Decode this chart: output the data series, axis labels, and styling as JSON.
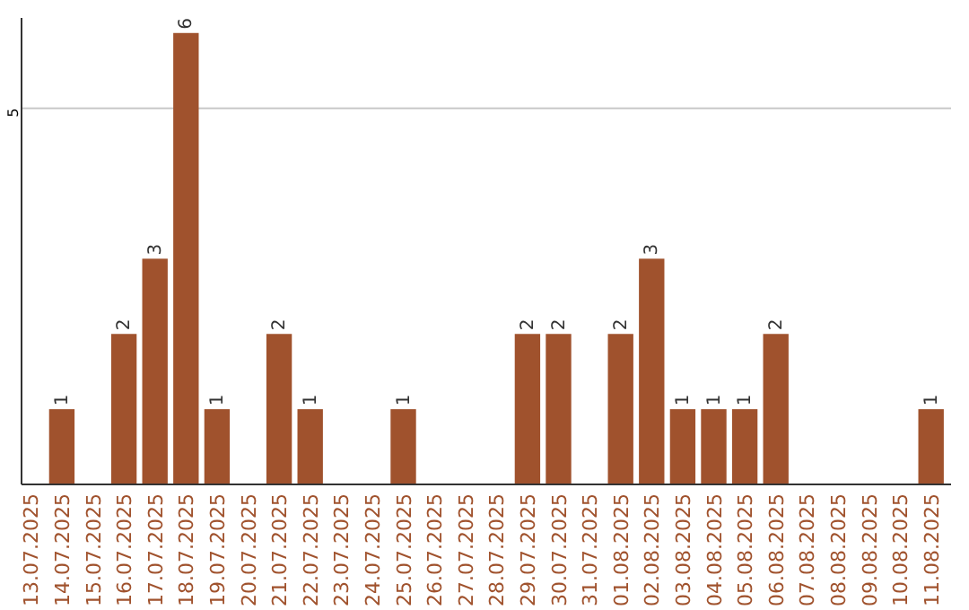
{
  "chart_data": {
    "type": "bar",
    "categories": [
      "13.07.2025",
      "14.07.2025",
      "15.07.2025",
      "16.07.2025",
      "17.07.2025",
      "18.07.2025",
      "19.07.2025",
      "20.07.2025",
      "21.07.2025",
      "22.07.2025",
      "23.07.2025",
      "24.07.2025",
      "25.07.2025",
      "26.07.2025",
      "27.07.2025",
      "28.07.2025",
      "29.07.2025",
      "30.07.2025",
      "31.07.2025",
      "01.08.2025",
      "02.08.2025",
      "03.08.2025",
      "04.08.2025",
      "05.08.2025",
      "06.08.2025",
      "07.08.2025",
      "08.08.2025",
      "09.08.2025",
      "10.08.2025",
      "11.08.2025"
    ],
    "values": [
      0,
      1,
      0,
      2,
      3,
      6,
      1,
      0,
      2,
      1,
      0,
      0,
      1,
      0,
      0,
      0,
      2,
      2,
      0,
      2,
      3,
      1,
      1,
      1,
      2,
      0,
      0,
      0,
      0,
      1
    ],
    "value_labels": [
      null,
      "1",
      null,
      "2",
      "3",
      "6",
      "1",
      null,
      "2",
      "1",
      null,
      null,
      "1",
      null,
      null,
      null,
      "2",
      "2",
      null,
      "2",
      "3",
      "1",
      "1",
      "1",
      "2",
      null,
      null,
      null,
      null,
      "1"
    ],
    "color": "#a0522d",
    "ylim": [
      0,
      6.2
    ],
    "yticks": [
      5
    ],
    "grid": "y"
  }
}
